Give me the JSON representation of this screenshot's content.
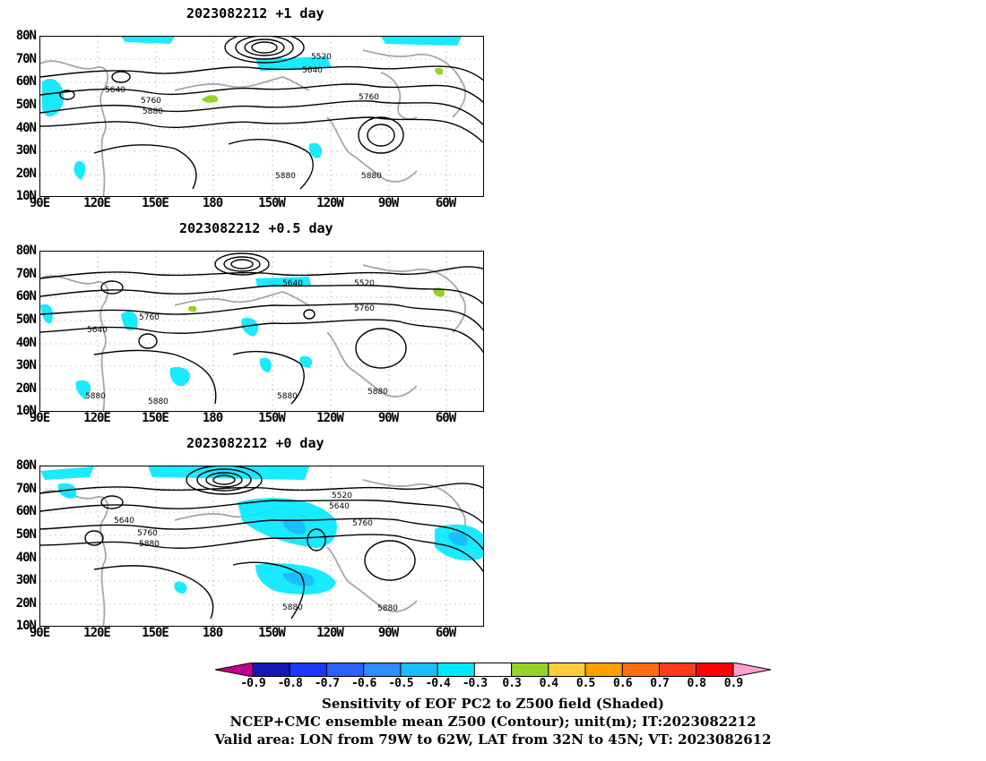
{
  "panels": [
    {
      "title": "2023082212  +1 day"
    },
    {
      "title": "2023082212  +0.5 day"
    },
    {
      "title": "2023082212  +0 day"
    }
  ],
  "axes": {
    "lat_labels": [
      "80N",
      "70N",
      "60N",
      "50N",
      "40N",
      "30N",
      "20N",
      "10N"
    ],
    "lon_labels": [
      "90E",
      "120E",
      "150E",
      "180",
      "150W",
      "120W",
      "90W",
      "60W"
    ]
  },
  "contour_labels": {
    "panel1": [
      "5520",
      "5640",
      "5640",
      "5760",
      "5760",
      "5880",
      "5880",
      "5880"
    ],
    "panel2": [
      "5640",
      "5520",
      "5760",
      "5760",
      "5640",
      "5880",
      "5880",
      "5880",
      "5880"
    ],
    "panel3": [
      "5520",
      "5640",
      "5640",
      "5760",
      "5760",
      "5880",
      "5880",
      "5880"
    ]
  },
  "colorbar": {
    "ticks": [
      "-0.9",
      "-0.8",
      "-0.7",
      "-0.6",
      "-0.5",
      "-0.4",
      "-0.3",
      "0.3",
      "0.4",
      "0.5",
      "0.6",
      "0.7",
      "0.8",
      "0.9"
    ],
    "colors": [
      "#c4008c",
      "#1616b4",
      "#1c38ff",
      "#2a60ff",
      "#2f8cff",
      "#18beff",
      "#00e8ff",
      "#ffffff",
      "#96d22a",
      "#ffcd38",
      "#ffa000",
      "#ff6e10",
      "#ff3a18",
      "#ff0008",
      "#ffa0d2"
    ]
  },
  "caption": {
    "line1": "Sensitivity of EOF PC2 to Z500 field (Shaded)",
    "line2": "NCEP+CMC ensemble mean Z500 (Contour); unit(m); IT:2023082212",
    "line3": "Valid area: LON from 79W to 62W, LAT from 32N to 45N; VT: 2023082612"
  }
}
